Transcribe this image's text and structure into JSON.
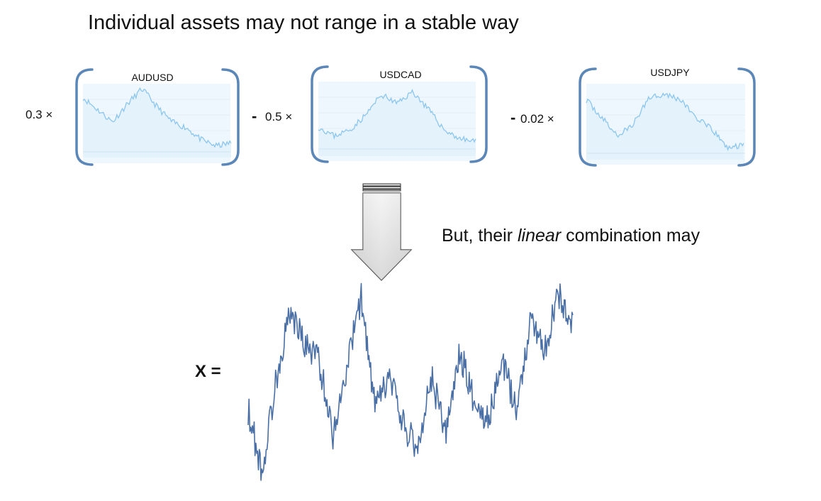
{
  "title": "Individual assets may not range in a stable way",
  "assets": [
    {
      "coefficient": "0.3 ×",
      "sign": "",
      "name": "AUDUSD"
    },
    {
      "coefficient": "0.5 ×",
      "sign": "-",
      "name": "USDCAD"
    },
    {
      "coefficient": "0.02 ×",
      "sign": "-",
      "name": "USDJPY"
    }
  ],
  "subtitle": {
    "before": "But, their ",
    "emphasis": "linear",
    "after": " combination may"
  },
  "result_label": "X =",
  "colors": {
    "bracket": "#5b86b8",
    "mini_line": "#8cc6ee",
    "mini_fill": "#e9f5fd",
    "main_line": "#4a6fa5",
    "arrow_fill_top": "#f2f2f2",
    "arrow_fill_bottom": "#bfbfbf"
  },
  "icons": [
    "arrow-down-icon"
  ]
}
